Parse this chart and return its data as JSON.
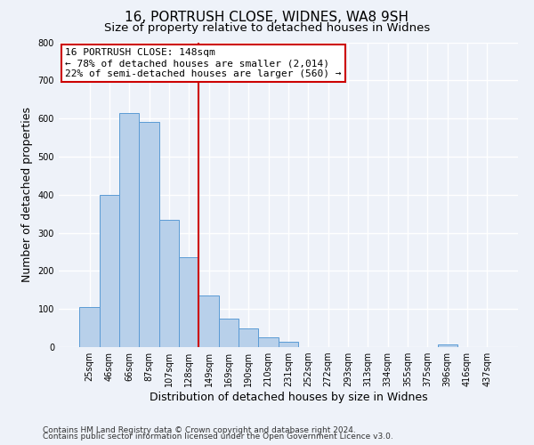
{
  "title": "16, PORTRUSH CLOSE, WIDNES, WA8 9SH",
  "subtitle": "Size of property relative to detached houses in Widnes",
  "xlabel": "Distribution of detached houses by size in Widnes",
  "ylabel": "Number of detached properties",
  "bin_labels": [
    "25sqm",
    "46sqm",
    "66sqm",
    "87sqm",
    "107sqm",
    "128sqm",
    "149sqm",
    "169sqm",
    "190sqm",
    "210sqm",
    "231sqm",
    "252sqm",
    "272sqm",
    "293sqm",
    "313sqm",
    "334sqm",
    "355sqm",
    "375sqm",
    "396sqm",
    "416sqm",
    "437sqm"
  ],
  "bar_values": [
    105,
    400,
    615,
    590,
    335,
    235,
    135,
    75,
    50,
    25,
    15,
    0,
    0,
    0,
    0,
    0,
    0,
    0,
    8,
    0,
    0
  ],
  "bar_color": "#b8d0ea",
  "bar_edge_color": "#5b9bd5",
  "highlight_bar_index": 6,
  "highlight_line_color": "#cc0000",
  "annotation_text": "16 PORTRUSH CLOSE: 148sqm\n← 78% of detached houses are smaller (2,014)\n22% of semi-detached houses are larger (560) →",
  "annotation_box_color": "#ffffff",
  "annotation_box_edge_color": "#cc0000",
  "ylim": [
    0,
    800
  ],
  "yticks": [
    0,
    100,
    200,
    300,
    400,
    500,
    600,
    700,
    800
  ],
  "footer_line1": "Contains HM Land Registry data © Crown copyright and database right 2024.",
  "footer_line2": "Contains public sector information licensed under the Open Government Licence v3.0.",
  "background_color": "#eef2f9",
  "grid_color": "#ffffff",
  "title_fontsize": 11,
  "subtitle_fontsize": 9.5,
  "axis_label_fontsize": 9,
  "tick_fontsize": 7,
  "annotation_fontsize": 8,
  "footer_fontsize": 6.5
}
